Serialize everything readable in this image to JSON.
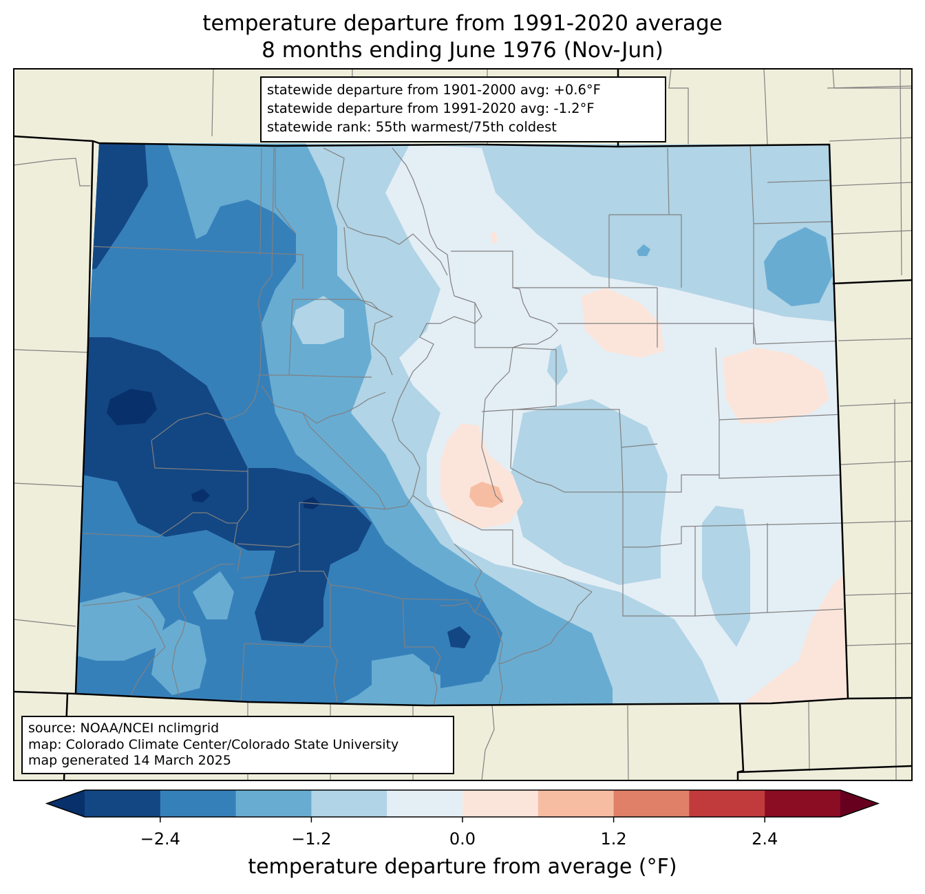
{
  "title": {
    "line1": "temperature departure from 1991-2020 average",
    "line2": "8 months ending June 1976 (Nov-Jun)"
  },
  "stats": {
    "line1": "statewide departure from 1901-2000 avg: +0.6°F",
    "line2": "statewide departure from 1991-2020 avg: -1.2°F",
    "line3": "statewide rank: 55th warmest/75th coldest"
  },
  "credits": {
    "line1": "source: NOAA/NCEI nclimgrid",
    "line2": "map: Colorado Climate Center/Colorado State University",
    "line3": "map generated 14 March 2025"
  },
  "colorbar": {
    "label": "temperature departure from average (°F)",
    "ticks": [
      "−2.4",
      "−1.2",
      "0.0",
      "1.2",
      "2.4"
    ],
    "tick_values": [
      -2.4,
      -1.2,
      0.0,
      1.2,
      2.4
    ],
    "min": -3.0,
    "max": 3.0,
    "extend": "both",
    "under_color": "#08306b",
    "over_color": "#67001f",
    "bins": [
      {
        "from": -3.0,
        "to": -2.4,
        "color": "#134783"
      },
      {
        "from": -2.4,
        "to": -1.8,
        "color": "#3680ba"
      },
      {
        "from": -1.8,
        "to": -1.2,
        "color": "#68acd2"
      },
      {
        "from": -1.2,
        "to": -0.6,
        "color": "#b1d4e6"
      },
      {
        "from": -0.6,
        "to": 0.0,
        "color": "#e4eef5"
      },
      {
        "from": 0.0,
        "to": 0.6,
        "color": "#fbe5db"
      },
      {
        "from": 0.6,
        "to": 1.2,
        "color": "#f7bda3"
      },
      {
        "from": 1.2,
        "to": 1.8,
        "color": "#e08068"
      },
      {
        "from": 1.8,
        "to": 2.4,
        "color": "#c13b3c"
      },
      {
        "from": 2.4,
        "to": 3.0,
        "color": "#8a0d24"
      }
    ]
  },
  "colors": {
    "land": "#efeedb",
    "county_lines": "#808080",
    "state_lines": "#000000"
  }
}
